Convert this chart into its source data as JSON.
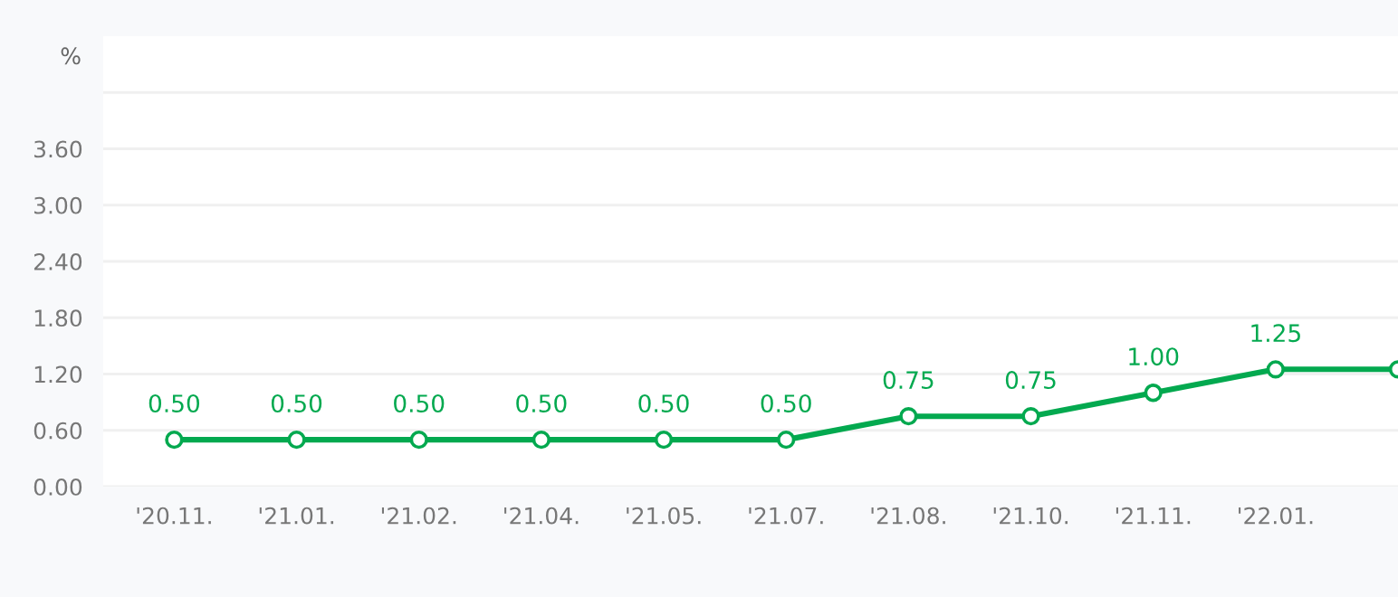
{
  "chart_data": {
    "type": "line",
    "ylabel": "%",
    "categories": [
      "'20.11.",
      "'21.01.",
      "'21.02.",
      "'21.04.",
      "'21.05.",
      "'21.07.",
      "'21.08.",
      "'21.10.",
      "'21.11.",
      "'22.01.",
      null
    ],
    "series": [
      {
        "color": "#03a94f",
        "values": [
          0.5,
          0.5,
          0.5,
          0.5,
          0.5,
          0.5,
          0.75,
          0.75,
          1.0,
          1.25,
          1.25
        ],
        "value_labels": [
          "0.50",
          "0.50",
          "0.50",
          "0.50",
          "0.50",
          "0.50",
          "0.75",
          "0.75",
          "1.00",
          "1.25",
          null
        ]
      }
    ],
    "ylim": [
      0,
      4.8
    ],
    "yticks": [
      {
        "value": 0,
        "label": "0.00"
      },
      {
        "value": 0.6,
        "label": "0.60"
      },
      {
        "value": 1.2,
        "label": "1.20"
      },
      {
        "value": 1.8,
        "label": "1.80"
      },
      {
        "value": 2.4,
        "label": "2.40"
      },
      {
        "value": 3.0,
        "label": "3.00"
      },
      {
        "value": 3.6,
        "label": "3.60"
      },
      {
        "value": 4.2,
        "label": null
      }
    ],
    "grid": "y",
    "marker": "circle",
    "line_style": "solid"
  }
}
